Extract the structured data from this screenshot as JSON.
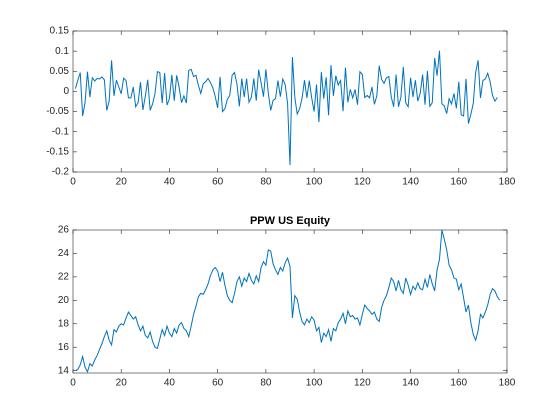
{
  "chart_data": [
    {
      "type": "line",
      "x": [
        1,
        2,
        3,
        4,
        5,
        6,
        7,
        8,
        9,
        10,
        11,
        12,
        13,
        14,
        15,
        16,
        17,
        18,
        19,
        20,
        21,
        22,
        23,
        24,
        25,
        26,
        27,
        28,
        29,
        30,
        31,
        32,
        33,
        34,
        35,
        36,
        37,
        38,
        39,
        40,
        41,
        42,
        43,
        44,
        45,
        46,
        47,
        48,
        49,
        50,
        51,
        52,
        53,
        54,
        55,
        56,
        57,
        58,
        59,
        60,
        61,
        62,
        63,
        64,
        65,
        66,
        67,
        68,
        69,
        70,
        71,
        72,
        73,
        74,
        75,
        76,
        77,
        78,
        79,
        80,
        81,
        82,
        83,
        84,
        85,
        86,
        87,
        88,
        89,
        90,
        91,
        92,
        93,
        94,
        95,
        96,
        97,
        98,
        99,
        100,
        101,
        102,
        103,
        104,
        105,
        106,
        107,
        108,
        109,
        110,
        111,
        112,
        113,
        114,
        115,
        116,
        117,
        118,
        119,
        120,
        121,
        122,
        123,
        124,
        125,
        126,
        127,
        128,
        129,
        130,
        131,
        132,
        133,
        134,
        135,
        136,
        137,
        138,
        139,
        140,
        141,
        142,
        143,
        144,
        145,
        146,
        147,
        148,
        149,
        150,
        151,
        152,
        153,
        154,
        155,
        156,
        157,
        158,
        159,
        160,
        161,
        162,
        163,
        164,
        165,
        166,
        167,
        168,
        169,
        170,
        171,
        172,
        173,
        174,
        175,
        176
      ],
      "series": [
        {
          "color": "#0072bd",
          "values": [
            0.007,
            0.028,
            0.047,
            -0.061,
            -0.028,
            0.049,
            -0.014,
            0.034,
            0.026,
            0.032,
            0.031,
            0.036,
            0.029,
            -0.047,
            -0.024,
            0.077,
            -0.011,
            0.028,
            0.011,
            -0.006,
            0.033,
            0.027,
            -0.016,
            -0.016,
            0.011,
            -0.038,
            -0.028,
            0.023,
            -0.046,
            -0.012,
            0.029,
            -0.047,
            -0.031,
            -0.006,
            0.049,
            0.047,
            -0.029,
            0.046,
            -0.034,
            -0.018,
            0.041,
            -0.023,
            0.04,
            0.011,
            -0.028,
            -0.011,
            -0.029,
            0.052,
            0.055,
            0.037,
            0.04,
            0.015,
            -0.005,
            0.019,
            0.024,
            0.032,
            0.022,
            0.009,
            -0.013,
            -0.041,
            0.036,
            -0.05,
            -0.043,
            -0.02,
            -0.01,
            0.04,
            0.047,
            0.018,
            -0.037,
            0.032,
            -0.014,
            0.032,
            -0.027,
            -0.014,
            0.032,
            -0.023,
            0.054,
            0.022,
            -0.013,
            0.055,
            -0.004,
            -0.047,
            -0.022,
            -0.018,
            0.027,
            -0.013,
            0.031,
            0.017,
            -0.03,
            -0.183,
            0.085,
            -0.015,
            -0.056,
            -0.043,
            -0.017,
            0.028,
            -0.016,
            0.027,
            -0.016,
            -0.05,
            0.017,
            -0.076,
            0.048,
            -0.018,
            0.035,
            -0.059,
            0.065,
            -0.011,
            0.039,
            0.016,
            0.027,
            -0.049,
            0.059,
            -0.027,
            0.005,
            -0.016,
            0.005,
            -0.033,
            0.049,
            0.042,
            -0.015,
            -0.01,
            -0.016,
            0.011,
            -0.032,
            -0.011,
            0.064,
            0.03,
            0.02,
            0.034,
            0.037,
            -0.014,
            -0.038,
            0.042,
            -0.038,
            -0.014,
            0.061,
            -0.028,
            -0.038,
            0.034,
            -0.014,
            0.028,
            -0.024,
            -0.005,
            0.042,
            -0.033,
            0.051,
            -0.037,
            -0.028,
            0.083,
            0.039,
            0.101,
            -0.031,
            -0.036,
            -0.055,
            -0.018,
            -0.031,
            -0.005,
            -0.042,
            0.024,
            -0.058,
            -0.061,
            0.031,
            -0.08,
            -0.057,
            -0.03,
            0.047,
            0.077,
            -0.016,
            0.027,
            0.031,
            0.045,
            0.024,
            -0.01,
            -0.024,
            -0.015
          ]
        }
      ],
      "xlim": [
        0,
        180
      ],
      "xticks": [
        0,
        20,
        40,
        60,
        80,
        100,
        120,
        140,
        160,
        180
      ],
      "ylim": [
        -0.2,
        0.15
      ],
      "yticks": [
        -0.2,
        -0.15,
        -0.1,
        -0.05,
        0,
        0.05,
        0.1,
        0.15
      ]
    },
    {
      "type": "line",
      "title": "PPW US Equity",
      "x": [
        1,
        2,
        3,
        4,
        5,
        6,
        7,
        8,
        9,
        10,
        11,
        12,
        13,
        14,
        15,
        16,
        17,
        18,
        19,
        20,
        21,
        22,
        23,
        24,
        25,
        26,
        27,
        28,
        29,
        30,
        31,
        32,
        33,
        34,
        35,
        36,
        37,
        38,
        39,
        40,
        41,
        42,
        43,
        44,
        45,
        46,
        47,
        48,
        49,
        50,
        51,
        52,
        53,
        54,
        55,
        56,
        57,
        58,
        59,
        60,
        61,
        62,
        63,
        64,
        65,
        66,
        67,
        68,
        69,
        70,
        71,
        72,
        73,
        74,
        75,
        76,
        77,
        78,
        79,
        80,
        81,
        82,
        83,
        84,
        85,
        86,
        87,
        88,
        89,
        90,
        91,
        92,
        93,
        94,
        95,
        96,
        97,
        98,
        99,
        100,
        101,
        102,
        103,
        104,
        105,
        106,
        107,
        108,
        109,
        110,
        111,
        112,
        113,
        114,
        115,
        116,
        117,
        118,
        119,
        120,
        121,
        122,
        123,
        124,
        125,
        126,
        127,
        128,
        129,
        130,
        131,
        132,
        133,
        134,
        135,
        136,
        137,
        138,
        139,
        140,
        141,
        142,
        143,
        144,
        145,
        146,
        147,
        148,
        149,
        150,
        151,
        152,
        153,
        154,
        155,
        156,
        157,
        158,
        159,
        160,
        161,
        162,
        163,
        164,
        165,
        166,
        167,
        168,
        169,
        170,
        171,
        172,
        173,
        174,
        175,
        176,
        177
      ],
      "series": [
        {
          "color": "#0072bd",
          "values": [
            14.0,
            14.1,
            14.5,
            15.2,
            14.3,
            13.9,
            14.6,
            14.4,
            14.9,
            15.3,
            15.8,
            16.3,
            16.9,
            17.4,
            16.6,
            16.2,
            17.5,
            17.3,
            17.8,
            18.0,
            17.9,
            18.5,
            19.0,
            18.7,
            18.4,
            18.6,
            17.9,
            17.4,
            17.8,
            17.0,
            16.8,
            17.3,
            16.5,
            16.0,
            15.9,
            16.7,
            17.5,
            17.0,
            17.8,
            17.2,
            16.9,
            17.6,
            17.2,
            17.9,
            18.1,
            17.6,
            17.4,
            16.9,
            17.8,
            18.8,
            19.5,
            20.3,
            20.6,
            20.5,
            20.9,
            21.4,
            22.1,
            22.6,
            22.8,
            22.5,
            21.6,
            22.4,
            21.3,
            20.4,
            20.0,
            19.8,
            20.6,
            21.6,
            22.0,
            21.2,
            21.9,
            21.6,
            22.3,
            21.7,
            21.4,
            22.1,
            21.6,
            22.8,
            23.3,
            23.0,
            24.3,
            24.2,
            23.1,
            22.6,
            22.2,
            22.8,
            22.5,
            23.2,
            23.6,
            22.9,
            18.5,
            20.4,
            20.1,
            19.0,
            18.2,
            17.9,
            18.4,
            18.1,
            18.6,
            18.3,
            17.4,
            17.7,
            16.4,
            17.2,
            16.9,
            17.5,
            16.5,
            17.6,
            17.4,
            18.1,
            18.4,
            18.9,
            18.0,
            19.1,
            18.6,
            18.7,
            18.4,
            18.5,
            17.9,
            18.8,
            19.6,
            19.3,
            19.1,
            18.8,
            19.0,
            18.4,
            18.2,
            19.4,
            20.0,
            20.4,
            21.1,
            21.9,
            21.6,
            20.8,
            21.7,
            20.9,
            20.6,
            21.9,
            21.3,
            20.5,
            21.2,
            20.9,
            21.5,
            21.0,
            20.9,
            21.8,
            21.1,
            22.2,
            21.4,
            20.8,
            22.6,
            23.5,
            26.0,
            25.2,
            24.3,
            23.0,
            22.6,
            21.9,
            21.8,
            20.9,
            21.4,
            20.2,
            19.0,
            19.6,
            18.1,
            17.1,
            16.6,
            17.4,
            18.8,
            18.5,
            19.0,
            19.6,
            20.5,
            21.0,
            20.8,
            20.3,
            20.0
          ]
        }
      ],
      "xlim": [
        0,
        180
      ],
      "xticks": [
        0,
        20,
        40,
        60,
        80,
        100,
        120,
        140,
        160,
        180
      ],
      "ylim": [
        13.8,
        26
      ],
      "yticks": [
        14,
        16,
        18,
        20,
        22,
        24,
        26
      ]
    }
  ]
}
